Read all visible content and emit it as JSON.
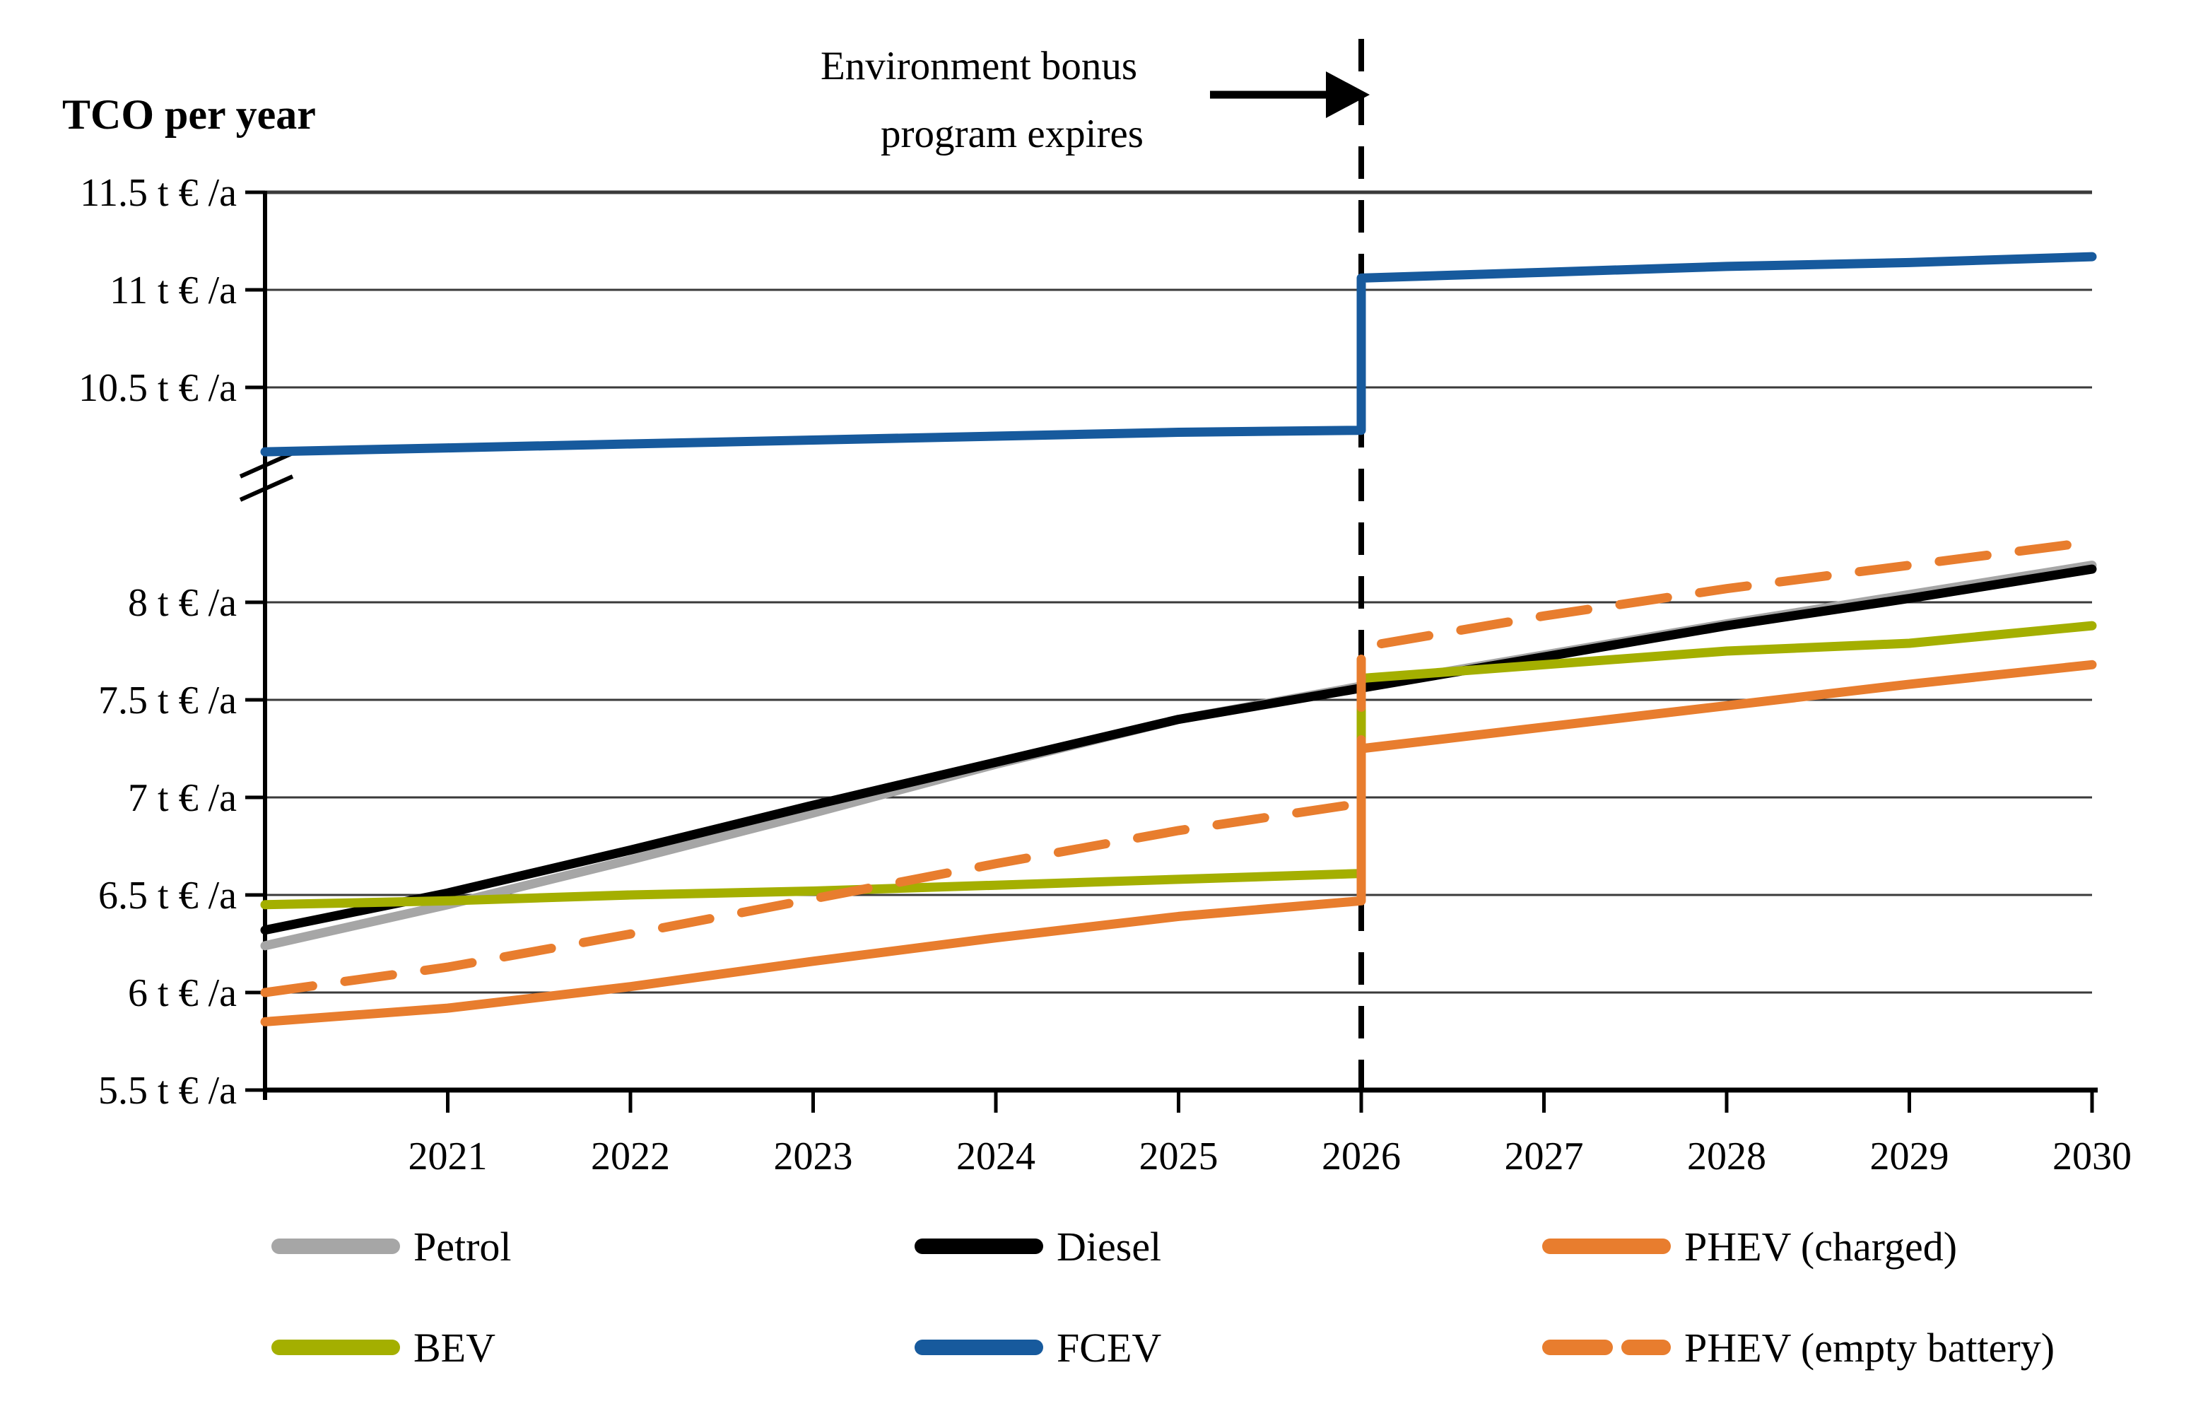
{
  "title": "TCO per year",
  "annotation": {
    "line1": "Environment bonus",
    "line2": "program expires"
  },
  "y_axis": {
    "ticks": [
      {
        "value": 11.5,
        "label": "11.5 t € /a",
        "heavy": true
      },
      {
        "value": 11,
        "label": "11 t € /a"
      },
      {
        "value": 10.5,
        "label": "10.5 t € /a"
      },
      {
        "value": 8,
        "label": "8 t € /a"
      },
      {
        "value": 7.5,
        "label": "7.5 t € /a"
      },
      {
        "value": 7,
        "label": "7 t € /a"
      },
      {
        "value": 6.5,
        "label": "6.5 t € /a"
      },
      {
        "value": 6,
        "label": "6 t € /a"
      },
      {
        "value": 5.5,
        "label": "5.5 t € /a",
        "is_axis": true
      }
    ],
    "has_break": true
  },
  "x_axis": {
    "ticks": [
      {
        "value": 2021,
        "label": "2021"
      },
      {
        "value": 2022,
        "label": "2022"
      },
      {
        "value": 2023,
        "label": "2023"
      },
      {
        "value": 2024,
        "label": "2024"
      },
      {
        "value": 2025,
        "label": "2025"
      },
      {
        "value": 2026,
        "label": "2026"
      },
      {
        "value": 2027,
        "label": "2027"
      },
      {
        "value": 2028,
        "label": "2028"
      },
      {
        "value": 2029,
        "label": "2029"
      },
      {
        "value": 2030,
        "label": "2030"
      }
    ]
  },
  "colors": {
    "petrol": "#a6a6a6",
    "diesel": "#000000",
    "bev": "#a4af00",
    "fcev": "#175a9d",
    "phev": "#e87d2e",
    "gridline": "#3a3a3a",
    "axis": "#000000"
  },
  "chart_data": {
    "type": "line",
    "title": "TCO per year",
    "ylabel": "TCO per year (t € /a)",
    "xlabel": "",
    "x_range": [
      2020,
      2030
    ],
    "y_lower_range": [
      5.5,
      8.5
    ],
    "y_upper_range": [
      10.0,
      11.5
    ],
    "y_axis_break_between": [
      8.5,
      10.0
    ],
    "grid": "horizontal",
    "legend_position": "bottom",
    "event_line": {
      "x": 2026,
      "label": "Environment bonus program expires"
    },
    "series": [
      {
        "name": "Petrol",
        "color_key": "petrol",
        "style": "solid",
        "points": [
          [
            2020,
            6.24
          ],
          [
            2021,
            6.45
          ],
          [
            2022,
            6.68
          ],
          [
            2023,
            6.92
          ],
          [
            2024,
            7.17
          ],
          [
            2025,
            7.4
          ],
          [
            2026,
            7.57
          ],
          [
            2027,
            7.73
          ],
          [
            2028,
            7.89
          ],
          [
            2029,
            8.04
          ],
          [
            2030,
            8.19
          ]
        ]
      },
      {
        "name": "Diesel",
        "color_key": "diesel",
        "style": "solid",
        "points": [
          [
            2020,
            6.32
          ],
          [
            2021,
            6.51
          ],
          [
            2022,
            6.73
          ],
          [
            2023,
            6.96
          ],
          [
            2024,
            7.18
          ],
          [
            2025,
            7.4
          ],
          [
            2026,
            7.56
          ],
          [
            2027,
            7.72
          ],
          [
            2028,
            7.88
          ],
          [
            2029,
            8.02
          ],
          [
            2030,
            8.17
          ]
        ]
      },
      {
        "name": "BEV",
        "color_key": "bev",
        "style": "solid",
        "points": [
          [
            2020,
            6.45
          ],
          [
            2021,
            6.47
          ],
          [
            2022,
            6.5
          ],
          [
            2023,
            6.52
          ],
          [
            2024,
            6.55
          ],
          [
            2025,
            6.58
          ],
          [
            2026,
            6.61
          ],
          [
            2026,
            7.61
          ],
          [
            2027,
            7.68
          ],
          [
            2028,
            7.75
          ],
          [
            2029,
            7.79
          ],
          [
            2030,
            7.88
          ]
        ]
      },
      {
        "name": "PHEV (charged)",
        "color_key": "phev",
        "style": "solid",
        "points": [
          [
            2020,
            5.85
          ],
          [
            2021,
            5.92
          ],
          [
            2022,
            6.03
          ],
          [
            2023,
            6.16
          ],
          [
            2024,
            6.28
          ],
          [
            2025,
            6.39
          ],
          [
            2026,
            6.47
          ],
          [
            2026,
            7.25
          ],
          [
            2027,
            7.36
          ],
          [
            2028,
            7.47
          ],
          [
            2029,
            7.58
          ],
          [
            2030,
            7.68
          ]
        ]
      },
      {
        "name": "PHEV (empty battery)",
        "color_key": "phev",
        "style": "dashed",
        "points": [
          [
            2020,
            6.0
          ],
          [
            2021,
            6.13
          ],
          [
            2022,
            6.3
          ],
          [
            2023,
            6.48
          ],
          [
            2024,
            6.66
          ],
          [
            2025,
            6.83
          ],
          [
            2026,
            6.97
          ],
          [
            2026,
            7.77
          ],
          [
            2027,
            7.93
          ],
          [
            2028,
            8.07
          ],
          [
            2029,
            8.19
          ],
          [
            2030,
            8.31
          ]
        ]
      },
      {
        "name": "FCEV",
        "color_key": "fcev",
        "style": "solid",
        "points": [
          [
            2020,
            10.17
          ],
          [
            2021,
            10.19
          ],
          [
            2022,
            10.21
          ],
          [
            2023,
            10.23
          ],
          [
            2024,
            10.25
          ],
          [
            2025,
            10.27
          ],
          [
            2026,
            10.28
          ],
          [
            2026,
            11.06
          ],
          [
            2027,
            11.09
          ],
          [
            2028,
            11.12
          ],
          [
            2029,
            11.14
          ],
          [
            2030,
            11.17
          ]
        ]
      }
    ]
  },
  "legend": {
    "items": [
      {
        "label": "Petrol",
        "color_key": "petrol",
        "dashed": false,
        "row": 0,
        "col": 0
      },
      {
        "label": "Diesel",
        "color_key": "diesel",
        "dashed": false,
        "row": 0,
        "col": 1
      },
      {
        "label": "PHEV (charged)",
        "color_key": "phev",
        "dashed": false,
        "row": 0,
        "col": 2
      },
      {
        "label": "BEV",
        "color_key": "bev",
        "dashed": false,
        "row": 1,
        "col": 0
      },
      {
        "label": "FCEV",
        "color_key": "fcev",
        "dashed": false,
        "row": 1,
        "col": 1
      },
      {
        "label": "PHEV (empty battery)",
        "color_key": "phev",
        "dashed": true,
        "row": 1,
        "col": 2
      }
    ]
  }
}
